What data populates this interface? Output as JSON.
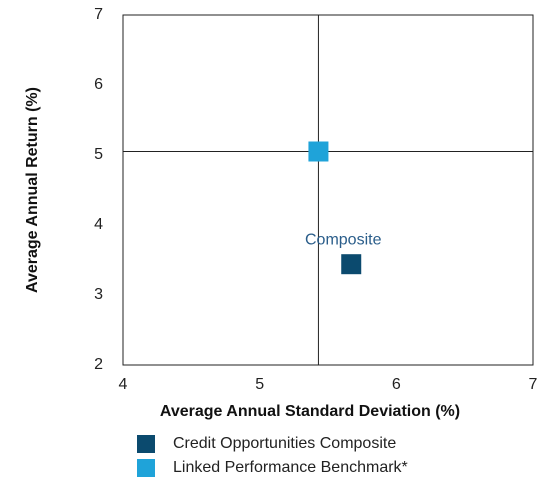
{
  "chart_data": {
    "type": "scatter",
    "xlabel": "Average Annual Standard Deviation (%)",
    "ylabel": "Average Annual Return (%)",
    "xlim": [
      4,
      7
    ],
    "ylim": [
      2,
      7
    ],
    "xticks": [
      4,
      5,
      6,
      7
    ],
    "yticks": [
      2,
      3,
      4,
      5,
      6,
      7
    ],
    "grid": false,
    "legend": "bottom",
    "series": [
      {
        "name": "Credit Opportunities Composite",
        "color": "#0b4a6e",
        "x": [
          5.67
        ],
        "values": [
          3.44
        ]
      },
      {
        "name": "Linked Performance Benchmark*",
        "color": "#1fa3d9",
        "x": [
          5.43
        ],
        "values": [
          5.05
        ]
      }
    ],
    "annotations": [
      {
        "text": "Composite",
        "series": 0
      }
    ],
    "crosshair_series": 1
  }
}
